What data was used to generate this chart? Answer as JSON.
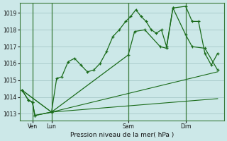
{
  "background_color": "#cce8e8",
  "grid_color": "#aacccc",
  "line_color": "#1a6b1a",
  "xlabel": "Pression niveau de la mer( hPa )",
  "ylim": [
    1012.6,
    1019.6
  ],
  "xlim": [
    0,
    16
  ],
  "yticks": [
    1013,
    1014,
    1015,
    1016,
    1017,
    1018,
    1019
  ],
  "day_labels": [
    "Ven",
    "Lun",
    "Sam",
    "Dim"
  ],
  "day_positions": [
    1.0,
    2.5,
    8.5,
    13.0
  ],
  "vline_positions": [
    1.0,
    2.5,
    8.5,
    13.0
  ],
  "line1_x": [
    0.2,
    0.7,
    1.0,
    1.2,
    2.5,
    2.9,
    3.3,
    3.8,
    4.3,
    4.8,
    5.3,
    5.8,
    6.3,
    6.8,
    7.3,
    7.8,
    8.3,
    8.7,
    9.1,
    9.5,
    9.9,
    10.3,
    10.7,
    11.1,
    11.5,
    12.0,
    13.0,
    13.5,
    14.0,
    14.5,
    15.0,
    15.5
  ],
  "line1_y": [
    1014.4,
    1013.8,
    1013.7,
    1012.9,
    1013.1,
    1015.1,
    1015.2,
    1016.1,
    1016.3,
    1015.9,
    1015.5,
    1015.6,
    1016.0,
    1016.7,
    1017.6,
    1018.0,
    1018.5,
    1018.8,
    1019.2,
    1018.8,
    1018.5,
    1018.0,
    1017.8,
    1018.0,
    1017.0,
    1019.3,
    1019.4,
    1018.5,
    1018.5,
    1016.6,
    1015.9,
    1016.6
  ],
  "line2_x": [
    0.2,
    0.7,
    1.0,
    1.2,
    2.5,
    8.5,
    9.0,
    9.8,
    11.0,
    11.5,
    12.0,
    13.0,
    13.5,
    14.5,
    15.5
  ],
  "line2_y": [
    1014.4,
    1013.8,
    1013.7,
    1012.9,
    1013.1,
    1016.5,
    1017.9,
    1018.0,
    1017.0,
    1016.9,
    1019.3,
    1017.7,
    1017.0,
    1016.9,
    1015.6
  ],
  "line3_x": [
    0.2,
    2.5,
    15.5
  ],
  "line3_y": [
    1014.4,
    1013.1,
    1015.5
  ],
  "line4_x": [
    0.2,
    2.5,
    15.5
  ],
  "line4_y": [
    1014.4,
    1013.1,
    1013.9
  ]
}
